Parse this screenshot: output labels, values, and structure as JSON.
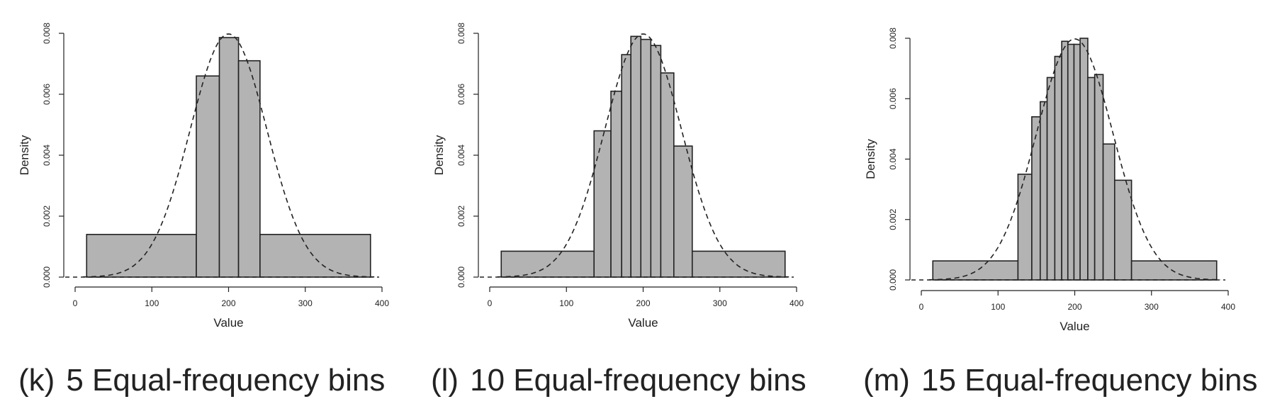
{
  "chart_data": [
    {
      "type": "bar",
      "panel_label": "(k)",
      "caption": "5 Equal-frequency bins",
      "xlabel": "Value",
      "ylabel": "Density",
      "xlim": [
        0,
        400
      ],
      "ylim": [
        0,
        0.008
      ],
      "xticks": [
        "0",
        "100",
        "200",
        "300",
        "400"
      ],
      "yticks": [
        "0.000",
        "0.002",
        "0.004",
        "0.006",
        "0.008"
      ],
      "bar_color": "#b3b3b3",
      "bins": [
        {
          "x0": 15,
          "x1": 158,
          "density": 0.0014
        },
        {
          "x0": 158,
          "x1": 188,
          "density": 0.0066
        },
        {
          "x0": 188,
          "x1": 213,
          "density": 0.00786
        },
        {
          "x0": 213,
          "x1": 241,
          "density": 0.0071
        },
        {
          "x0": 241,
          "x1": 385,
          "density": 0.0014
        }
      ],
      "curve": {
        "style": "dashed",
        "distribution": "normal",
        "mean": 200,
        "sd": 50
      }
    },
    {
      "type": "bar",
      "panel_label": "(l)",
      "caption": "10 Equal-frequency bins",
      "xlabel": "Value",
      "ylabel": "Density",
      "xlim": [
        0,
        400
      ],
      "ylim": [
        0,
        0.008
      ],
      "xticks": [
        "0",
        "100",
        "200",
        "300",
        "400"
      ],
      "yticks": [
        "0.000",
        "0.002",
        "0.004",
        "0.006",
        "0.008"
      ],
      "bar_color": "#b3b3b3",
      "bins": [
        {
          "x0": 15,
          "x1": 136,
          "density": 0.00085
        },
        {
          "x0": 136,
          "x1": 158,
          "density": 0.0048
        },
        {
          "x0": 158,
          "x1": 172,
          "density": 0.0061
        },
        {
          "x0": 172,
          "x1": 184,
          "density": 0.0073
        },
        {
          "x0": 184,
          "x1": 197,
          "density": 0.0079
        },
        {
          "x0": 197,
          "x1": 210,
          "density": 0.0078
        },
        {
          "x0": 210,
          "x1": 223,
          "density": 0.0076
        },
        {
          "x0": 223,
          "x1": 240,
          "density": 0.0067
        },
        {
          "x0": 240,
          "x1": 264,
          "density": 0.0043
        },
        {
          "x0": 264,
          "x1": 385,
          "density": 0.00085
        }
      ],
      "curve": {
        "style": "dashed",
        "distribution": "normal",
        "mean": 200,
        "sd": 50
      }
    },
    {
      "type": "bar",
      "panel_label": "(m)",
      "caption": "15 Equal-frequency bins",
      "xlabel": "Value",
      "ylabel": "Density",
      "xlim": [
        0,
        400
      ],
      "ylim": [
        0,
        0.008
      ],
      "xticks": [
        "0",
        "100",
        "200",
        "300",
        "400"
      ],
      "yticks": [
        "0.000",
        "0.002",
        "0.004",
        "0.006",
        "0.008"
      ],
      "bar_color": "#b3b3b3",
      "bins": [
        {
          "x0": 15,
          "x1": 126,
          "density": 0.00063
        },
        {
          "x0": 126,
          "x1": 144,
          "density": 0.0035
        },
        {
          "x0": 144,
          "x1": 155,
          "density": 0.0054
        },
        {
          "x0": 155,
          "x1": 164,
          "density": 0.0059
        },
        {
          "x0": 164,
          "x1": 174,
          "density": 0.0067
        },
        {
          "x0": 174,
          "x1": 183,
          "density": 0.0074
        },
        {
          "x0": 183,
          "x1": 191,
          "density": 0.0079
        },
        {
          "x0": 191,
          "x1": 199,
          "density": 0.0078
        },
        {
          "x0": 199,
          "x1": 207,
          "density": 0.0078
        },
        {
          "x0": 207,
          "x1": 217,
          "density": 0.008
        },
        {
          "x0": 217,
          "x1": 226,
          "density": 0.0067
        },
        {
          "x0": 226,
          "x1": 237,
          "density": 0.0068
        },
        {
          "x0": 237,
          "x1": 252,
          "density": 0.0045
        },
        {
          "x0": 252,
          "x1": 274,
          "density": 0.0033
        },
        {
          "x0": 274,
          "x1": 385,
          "density": 0.00063
        }
      ],
      "curve": {
        "style": "dashed",
        "distribution": "normal",
        "mean": 200,
        "sd": 50
      }
    }
  ]
}
